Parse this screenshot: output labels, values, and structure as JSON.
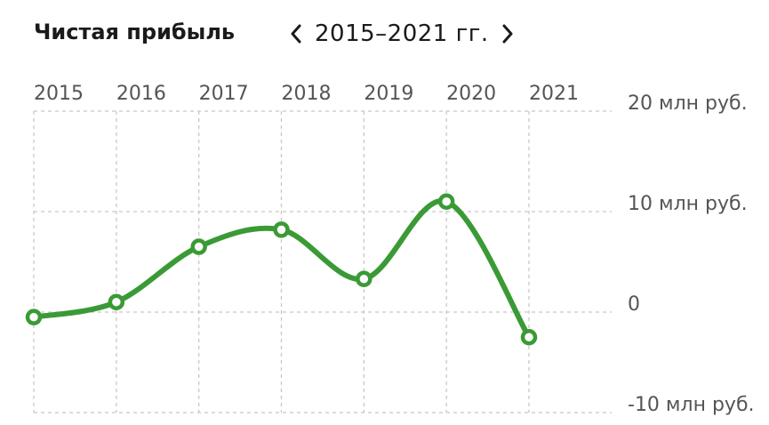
{
  "header": {
    "title": "Чистая прибыль",
    "period": "2015–2021 гг."
  },
  "chart_data": {
    "type": "line",
    "title": "Чистая прибыль",
    "x": [
      2015,
      2016,
      2017,
      2018,
      2019,
      2020,
      2021
    ],
    "x_tick_labels": [
      "2015",
      "2016",
      "2017",
      "2018",
      "2019",
      "2020",
      "2021"
    ],
    "series": [
      {
        "values": [
          -0.5,
          1.0,
          6.5,
          8.2,
          3.3,
          11.0,
          -2.5
        ]
      }
    ],
    "y_ticks": [
      20,
      10,
      0,
      -10
    ],
    "y_tick_labels": [
      "20 млн руб.",
      "10 млн руб.",
      "0",
      "-10 млн руб."
    ],
    "ylim": [
      -10,
      20
    ],
    "grid": true,
    "color": "#3a9a35"
  }
}
